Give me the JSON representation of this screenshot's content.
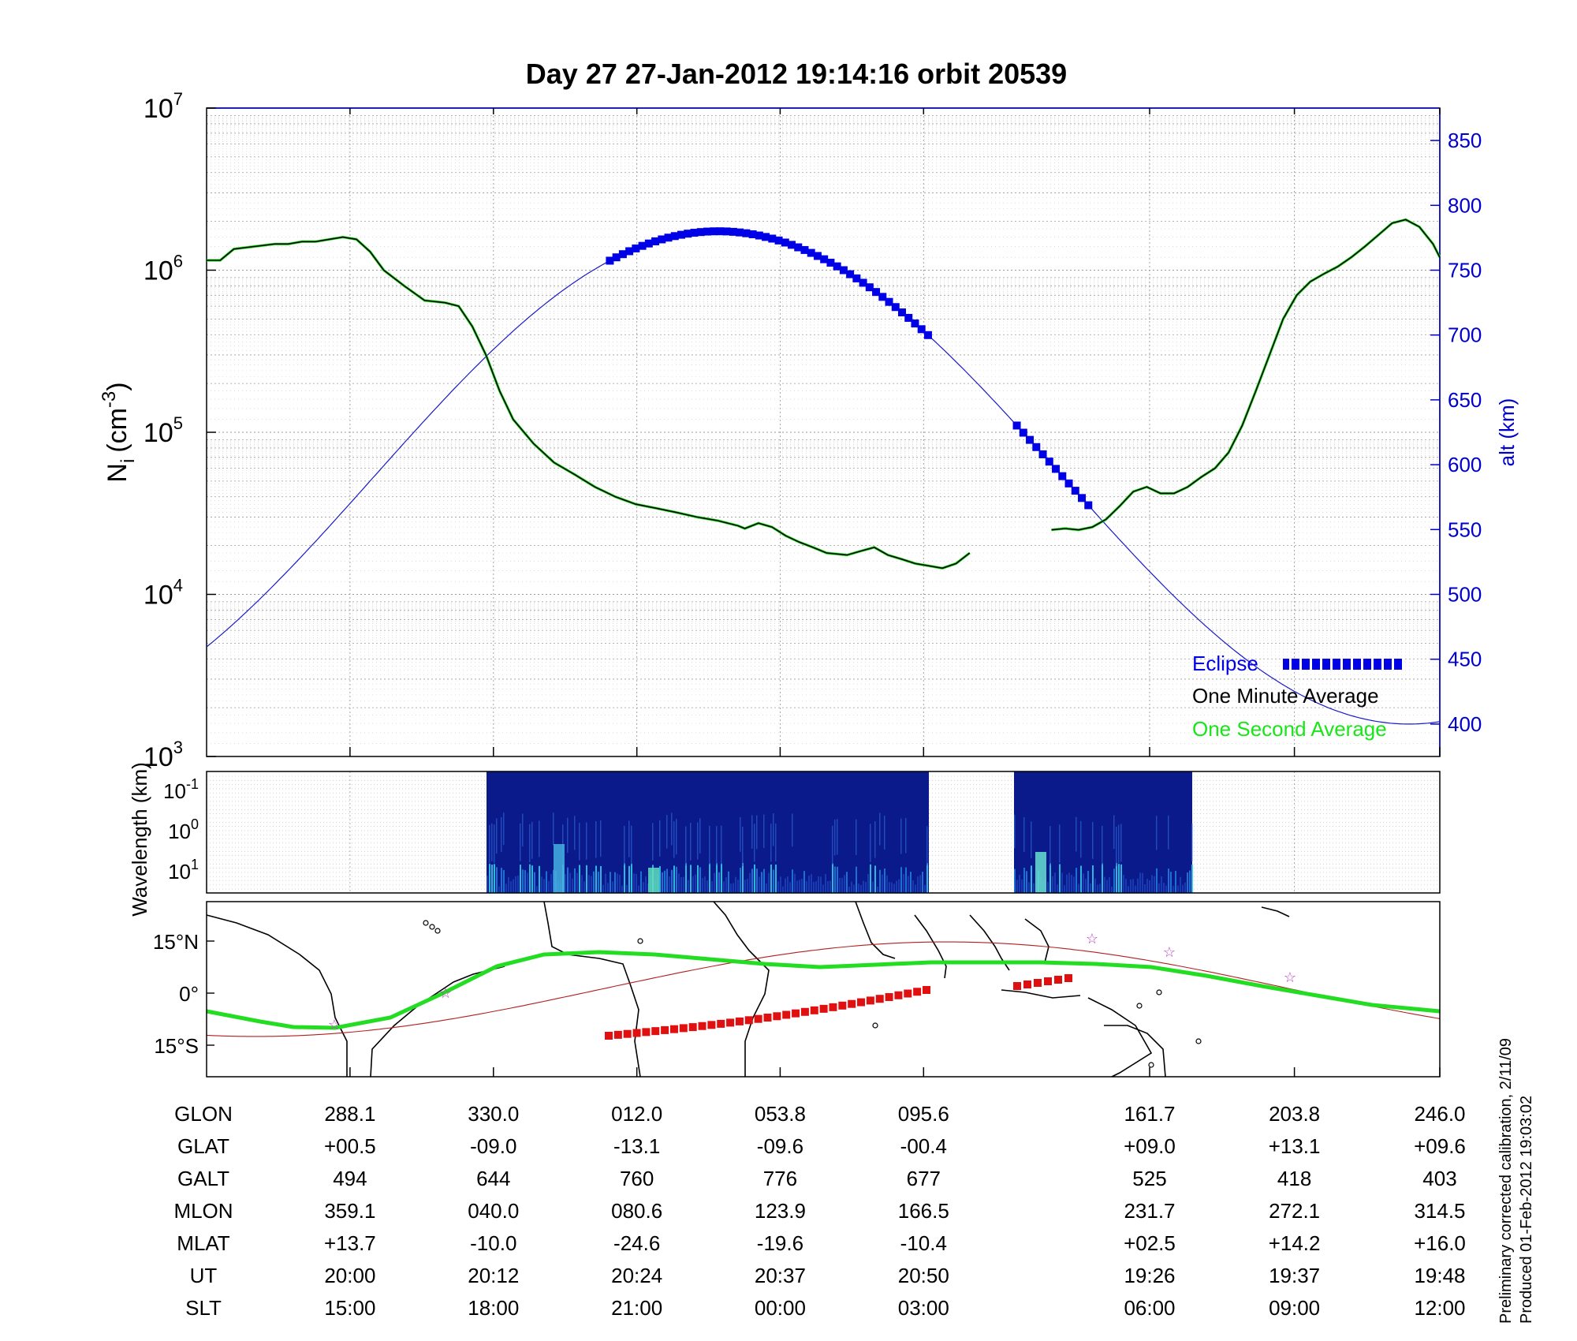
{
  "colors": {
    "axis": "#000000",
    "alt_axis": "#0000cc",
    "grid": "#9a9a9a",
    "one_minute": "#000000",
    "one_second": "#19e619",
    "eclipse": "#0000e6",
    "alt_line": "#1a1acc",
    "track_main": "#22dd22",
    "track_red": "#e01010",
    "track_dark": "#b02020",
    "star": "#c040c0",
    "coast": "#000000",
    "spec_bg": "#0a1a8a"
  },
  "chart_data": [
    {
      "type": "line",
      "title": "Day 27  27-Jan-2012 19:14:16   orbit 20539",
      "ylabel_main": "N",
      "ylabel_sub": "i",
      "ylabel_unit": "(cm",
      "ylabel_exp": "-3",
      "ylabel_close": ")",
      "yscale": "log",
      "ylim": [
        1000,
        10000000
      ],
      "ytick_base": "10",
      "ytick_exps": [
        "3",
        "4",
        "5",
        "6",
        "7"
      ],
      "y2label": "alt (km)",
      "y2lim": [
        375,
        875
      ],
      "y2ticks": [
        "400",
        "450",
        "500",
        "550",
        "600",
        "650",
        "700",
        "750",
        "800",
        "850"
      ],
      "xlim": [
        0,
        8.6
      ],
      "grid": "on",
      "legend_position": "bottom-right",
      "legend": [
        "Eclipse",
        "One Minute Average",
        "One Second Average"
      ],
      "ni_segments": [
        [
          [
            0.0,
            1150000.0
          ],
          [
            0.1,
            1150000.0
          ],
          [
            0.2,
            1350000.0
          ],
          [
            0.35,
            1400000.0
          ],
          [
            0.5,
            1450000.0
          ],
          [
            0.6,
            1450000.0
          ],
          [
            0.7,
            1500000.0
          ],
          [
            0.8,
            1500000.0
          ],
          [
            0.9,
            1550000.0
          ],
          [
            1.0,
            1600000.0
          ],
          [
            1.1,
            1550000.0
          ],
          [
            1.2,
            1300000.0
          ],
          [
            1.3,
            1000000.0
          ],
          [
            1.45,
            800000.0
          ],
          [
            1.6,
            650000.0
          ],
          [
            1.75,
            630000.0
          ],
          [
            1.85,
            600000.0
          ],
          [
            1.95,
            450000.0
          ],
          [
            2.05,
            300000.0
          ],
          [
            2.15,
            180000.0
          ],
          [
            2.25,
            120000.0
          ],
          [
            2.4,
            85000.0
          ],
          [
            2.55,
            65000.0
          ],
          [
            2.7,
            55000.0
          ],
          [
            2.85,
            46000.0
          ],
          [
            3.0,
            40000.0
          ],
          [
            3.15,
            36000.0
          ],
          [
            3.3,
            34000.0
          ],
          [
            3.45,
            32000.0
          ],
          [
            3.6,
            30000.0
          ],
          [
            3.75,
            28500.0
          ],
          [
            3.9,
            26500.0
          ],
          [
            3.95,
            25500.0
          ],
          [
            4.05,
            27500.0
          ],
          [
            4.15,
            26000.0
          ],
          [
            4.25,
            23000.0
          ],
          [
            4.35,
            21000.0
          ],
          [
            4.45,
            19500.0
          ],
          [
            4.55,
            18000.0
          ],
          [
            4.7,
            17500.0
          ],
          [
            4.8,
            18500.0
          ],
          [
            4.9,
            19500.0
          ],
          [
            5.0,
            17500.0
          ],
          [
            5.1,
            16500.0
          ],
          [
            5.2,
            15500.0
          ],
          [
            5.3,
            15000.0
          ],
          [
            5.4,
            14500.0
          ],
          [
            5.5,
            15500.0
          ],
          [
            5.6,
            18000.0
          ]
        ],
        [
          [
            6.2,
            25000.0
          ],
          [
            6.3,
            25500.0
          ],
          [
            6.4,
            25000.0
          ],
          [
            6.5,
            26000.0
          ],
          [
            6.6,
            29000.0
          ],
          [
            6.7,
            35000.0
          ],
          [
            6.8,
            43000.0
          ],
          [
            6.9,
            46000.0
          ],
          [
            7.0,
            42000.0
          ],
          [
            7.1,
            42000.0
          ],
          [
            7.2,
            46000.0
          ],
          [
            7.3,
            53000.0
          ],
          [
            7.4,
            60000.0
          ],
          [
            7.5,
            75000.0
          ],
          [
            7.6,
            110000.0
          ],
          [
            7.7,
            180000.0
          ],
          [
            7.8,
            300000.0
          ],
          [
            7.9,
            500000.0
          ],
          [
            8.0,
            700000.0
          ],
          [
            8.1,
            850000.0
          ],
          [
            8.2,
            950000.0
          ],
          [
            8.3,
            1050000.0
          ],
          [
            8.4,
            1200000.0
          ],
          [
            8.5,
            1400000.0
          ],
          [
            8.6,
            1650000.0
          ],
          [
            8.7,
            1950000.0
          ],
          [
            8.8,
            2050000.0
          ],
          [
            8.9,
            1850000.0
          ],
          [
            9.0,
            1450000.0
          ],
          [
            9.05,
            1200000.0
          ]
        ]
      ],
      "eclipse_segments": [
        [
          [
            2.8,
            1000000.0
          ],
          [
            5.0,
            260000.0
          ]
        ],
        [
          [
            5.6,
            200000.0
          ],
          [
            6.15,
            95000.0
          ]
        ]
      ]
    },
    {
      "type": "heatmap",
      "ylabel": "Wavelength (km)",
      "ytick_base": "10",
      "ytick_exps": [
        "-1",
        "0",
        "1"
      ],
      "blocks_x": [
        [
          2.0,
          5.07
        ],
        [
          5.67,
          6.91
        ]
      ]
    },
    {
      "type": "map",
      "yticks": [
        "15°N",
        "0°",
        "15°S"
      ],
      "ylim": [
        -25,
        25
      ],
      "xlim_glon": [
        288.1,
        246.0
      ]
    }
  ],
  "table": {
    "row_labels": [
      "GLON",
      "GLAT",
      "GALT",
      "MLON",
      "MLAT",
      "UT",
      "SLT"
    ],
    "columns": [
      [
        "288.1",
        "+00.5",
        "494",
        "359.1",
        "+13.7",
        "20:00",
        "15:00"
      ],
      [
        "330.0",
        "-09.0",
        "644",
        "040.0",
        "-10.0",
        "20:12",
        "18:00"
      ],
      [
        "012.0",
        "-13.1",
        "760",
        "080.6",
        "-24.6",
        "20:24",
        "21:00"
      ],
      [
        "053.8",
        "-09.6",
        "776",
        "123.9",
        "-19.6",
        "20:37",
        "00:00"
      ],
      [
        "095.6",
        "-00.4",
        "677",
        "166.5",
        "-10.4",
        "20:50",
        "03:00"
      ],
      [
        "161.7",
        "+09.0",
        "525",
        "231.7",
        "+02.5",
        "19:26",
        "06:00"
      ],
      [
        "203.8",
        "+13.1",
        "418",
        "272.1",
        "+14.2",
        "19:37",
        "09:00"
      ],
      [
        "246.0",
        "+09.6",
        "403",
        "314.5",
        "+16.0",
        "19:48",
        "12:00"
      ]
    ]
  },
  "footer_note_1": "Preliminary corrected calibration, 2/11/09",
  "footer_note_2": "Produced 01-Feb-2012 19:03:02"
}
